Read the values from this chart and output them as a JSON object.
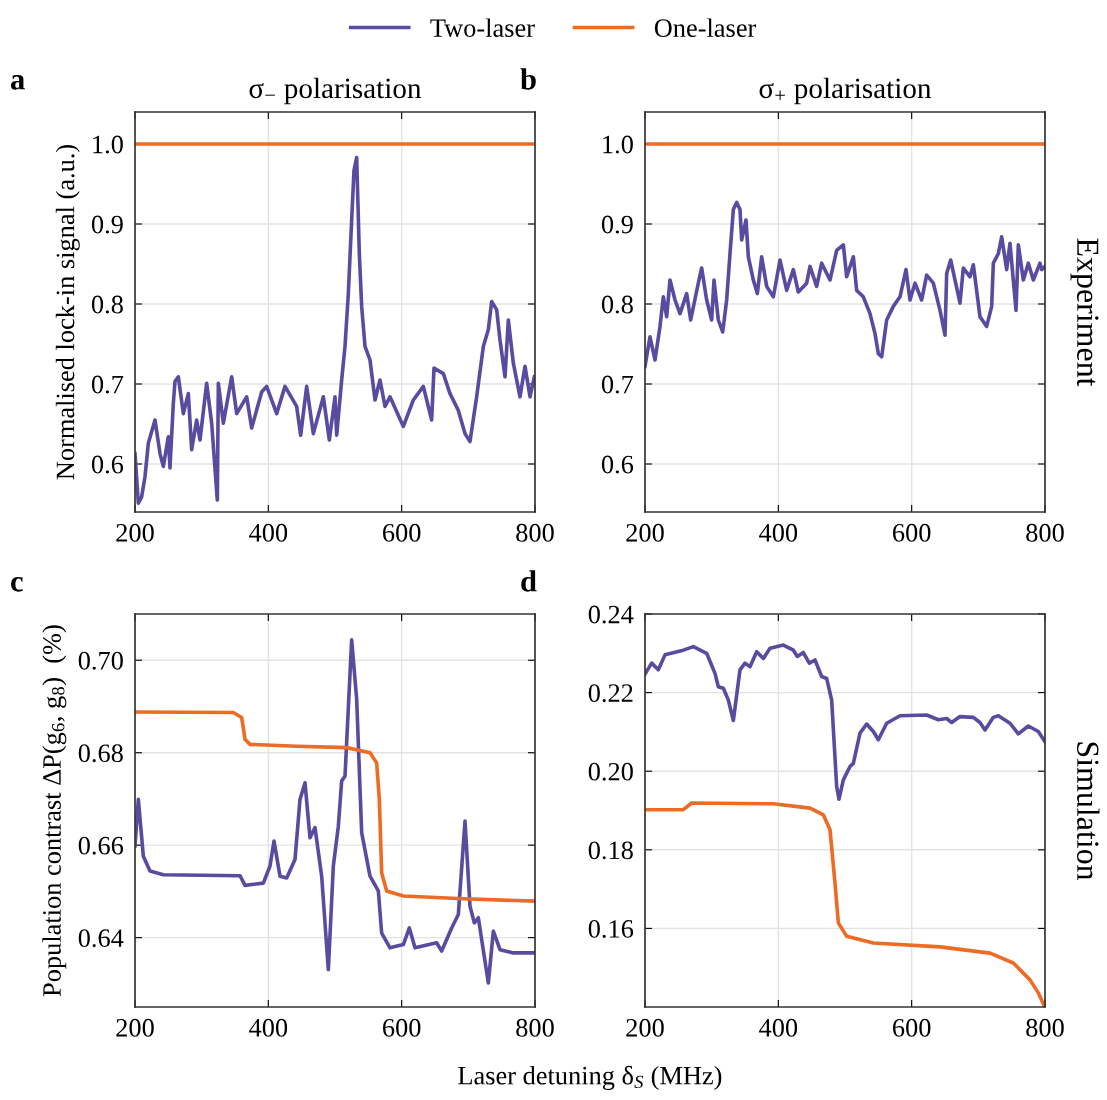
{
  "chart_data": [
    {
      "type": "line",
      "title": "σ$_{−}$ polarisation",
      "ylabel": "Normalised lock-in signal (a.u.)",
      "annotations": [
        "a"
      ],
      "xlim": [
        200,
        800
      ],
      "xticks": [
        200,
        400,
        600,
        800
      ],
      "ylim": [
        0.54,
        1.04
      ],
      "yticks": [
        0.6,
        0.7,
        0.8,
        0.9,
        {
          "value": 1,
          "label": "1.0"
        }
      ],
      "grid": true,
      "legend": "top",
      "series": [
        {
          "name": "Two-laser",
          "color": "#5a4ba0",
          "x": [
            200,
            205,
            210,
            215,
            220,
            230,
            237.5,
            242.5,
            250,
            252.5,
            257.5,
            260,
            265,
            272.5,
            280,
            285,
            292.5,
            297.5,
            307.5,
            315,
            323.5,
            325,
            332.5,
            345,
            352.5,
            367.5,
            375,
            390,
            397.5,
            412.5,
            425,
            442.5,
            448.5,
            457.5,
            467.5,
            482.5,
            491.5,
            500,
            502.5,
            510,
            515,
            520,
            525,
            528.5,
            532.5,
            536.5,
            540,
            545,
            552.5,
            560,
            567.5,
            575,
            582.5,
            602.5,
            617.5,
            632.5,
            645,
            648.5,
            662.5,
            672.5,
            685,
            695,
            702.5,
            712.5,
            722.5,
            730,
            735,
            742.5,
            747.5,
            755,
            760,
            767.5,
            777.5,
            785,
            792.5,
            799
          ],
          "values": [
            0.613,
            0.551,
            0.559,
            0.584,
            0.626,
            0.655,
            0.613,
            0.597,
            0.634,
            0.595,
            0.676,
            0.703,
            0.709,
            0.663,
            0.688,
            0.618,
            0.655,
            0.63,
            0.701,
            0.651,
            0.555,
            0.701,
            0.651,
            0.709,
            0.663,
            0.684,
            0.645,
            0.69,
            0.697,
            0.663,
            0.697,
            0.672,
            0.636,
            0.697,
            0.638,
            0.684,
            0.63,
            0.684,
            0.636,
            0.705,
            0.747,
            0.813,
            0.905,
            0.967,
            0.983,
            0.863,
            0.797,
            0.747,
            0.73,
            0.68,
            0.705,
            0.672,
            0.684,
            0.647,
            0.68,
            0.697,
            0.655,
            0.72,
            0.713,
            0.688,
            0.667,
            0.638,
            0.628,
            0.684,
            0.747,
            0.768,
            0.803,
            0.793,
            0.755,
            0.709,
            0.78,
            0.726,
            0.684,
            0.722,
            0.684,
            0.709
          ]
        },
        {
          "name": "One-laser",
          "color": "#ee6b23",
          "x": [
            200,
            800
          ],
          "values": [
            1.0,
            1.0
          ]
        }
      ]
    },
    {
      "type": "line",
      "title": "σ$_{+}$ polarisation",
      "annotations": [
        "b",
        "Experiment"
      ],
      "xlim": [
        200,
        800
      ],
      "xticks": [
        200,
        400,
        600,
        800
      ],
      "ylim": [
        0.54,
        1.04
      ],
      "yticks": [
        0.6,
        0.7,
        0.8,
        0.9,
        {
          "value": 1,
          "label": "1.0"
        }
      ],
      "grid": true,
      "series": [
        {
          "color": "#5a4ba0",
          "x": [
            200,
            207.5,
            215,
            222.5,
            227.5,
            232.5,
            237.5,
            245,
            252.5,
            262.5,
            268.5,
            280,
            285,
            292.5,
            300,
            303.5,
            310,
            316.5,
            322.5,
            327.5,
            332.5,
            337.5,
            342.5,
            345,
            351.5,
            355,
            362.5,
            368.5,
            375,
            382.5,
            392.5,
            402.5,
            412.5,
            422.5,
            430,
            442.5,
            447.5,
            457.5,
            465,
            477.5,
            487.5,
            497.5,
            502.5,
            512.5,
            517.5,
            527.5,
            537.5,
            545,
            550,
            555,
            562.5,
            572.5,
            582.5,
            591.5,
            597.5,
            605,
            615,
            622.5,
            632.5,
            642.5,
            650,
            652.5,
            658.5,
            672.5,
            677.5,
            687.5,
            692.5,
            702.5,
            712.5,
            720,
            722.5,
            730,
            735,
            742.5,
            747.5,
            756.5,
            760,
            767.5,
            775,
            782.5,
            792.5,
            795,
            800
          ],
          "values": [
            0.722,
            0.759,
            0.73,
            0.772,
            0.809,
            0.784,
            0.83,
            0.805,
            0.788,
            0.813,
            0.78,
            0.826,
            0.845,
            0.805,
            0.78,
            0.83,
            0.78,
            0.765,
            0.805,
            0.863,
            0.918,
            0.927,
            0.918,
            0.88,
            0.905,
            0.859,
            0.83,
            0.813,
            0.859,
            0.822,
            0.809,
            0.855,
            0.817,
            0.843,
            0.815,
            0.826,
            0.847,
            0.822,
            0.851,
            0.83,
            0.867,
            0.874,
            0.834,
            0.859,
            0.817,
            0.809,
            0.788,
            0.763,
            0.738,
            0.734,
            0.78,
            0.797,
            0.809,
            0.843,
            0.805,
            0.826,
            0.805,
            0.836,
            0.826,
            0.792,
            0.761,
            0.838,
            0.855,
            0.801,
            0.845,
            0.834,
            0.849,
            0.784,
            0.772,
            0.797,
            0.851,
            0.863,
            0.884,
            0.843,
            0.876,
            0.792,
            0.874,
            0.83,
            0.851,
            0.83,
            0.851,
            0.843,
            0.847
          ]
        },
        {
          "color": "#ee6b23",
          "x": [
            200,
            800
          ],
          "values": [
            1.0,
            1.0
          ]
        }
      ]
    },
    {
      "type": "line",
      "ylabel": "Population contrast ΔP(g$_{6}$, g$_{8}$)  (%)",
      "xlabel": "Laser detuning δ$_{S}$ (MHz)",
      "annotations": [
        "c"
      ],
      "xlim": [
        200,
        800
      ],
      "xticks": [
        200,
        400,
        600,
        800
      ],
      "ylim": [
        0.625,
        0.71
      ],
      "yticks": [
        0.64,
        0.66,
        0.68,
        {
          "value": 0.7,
          "label": "0.70"
        }
      ],
      "grid": true,
      "series": [
        {
          "color": "#5a4ba0",
          "x": [
            200,
            205,
            212.5,
            222.5,
            242.5,
            357.5,
            365,
            392.5,
            402.5,
            408.5,
            417.5,
            427.5,
            440,
            447.5,
            455,
            462.5,
            470,
            480,
            490,
            497.5,
            505,
            510,
            515,
            525,
            532.5,
            540,
            552.5,
            565,
            570,
            582.5,
            602.5,
            611.5,
            620,
            652.5,
            660,
            675,
            685,
            695,
            702.5,
            709,
            715,
            730,
            737.5,
            747.5,
            767.5,
            799
          ],
          "values": [
            0.6598,
            0.6699,
            0.6576,
            0.6544,
            0.6536,
            0.6534,
            0.6513,
            0.6518,
            0.6555,
            0.6609,
            0.6533,
            0.6529,
            0.6569,
            0.6699,
            0.6735,
            0.6616,
            0.6638,
            0.6533,
            0.6331,
            0.6555,
            0.6641,
            0.6739,
            0.6749,
            0.7044,
            0.6916,
            0.6627,
            0.6533,
            0.6501,
            0.641,
            0.6378,
            0.6385,
            0.6421,
            0.6378,
            0.6389,
            0.6371,
            0.6421,
            0.645,
            0.6652,
            0.6468,
            0.6432,
            0.6443,
            0.6302,
            0.6414,
            0.6374,
            0.6367,
            0.6367
          ]
        },
        {
          "color": "#ee6b23",
          "x": [
            200,
            347.5,
            360,
            365,
            372.5,
            442.5,
            517.5,
            552.5,
            562.5,
            566.5,
            570,
            577.5,
            602.5,
            692.5,
            799
          ],
          "values": [
            0.6888,
            0.6887,
            0.6876,
            0.6829,
            0.6818,
            0.6814,
            0.6811,
            0.68,
            0.6778,
            0.6699,
            0.654,
            0.6501,
            0.649,
            0.6484,
            0.6479
          ]
        }
      ]
    },
    {
      "type": "line",
      "annotations": [
        "d",
        "Simulation"
      ],
      "xlim": [
        200,
        800
      ],
      "xticks": [
        200,
        400,
        600,
        800
      ],
      "ylim": [
        0.14,
        0.24
      ],
      "yticks": [
        0.16,
        0.18,
        {
          "value": 0.2,
          "label": "0.20"
        },
        0.22,
        0.24
      ],
      "grid": true,
      "series": [
        {
          "color": "#5a4ba0",
          "x": [
            200,
            210,
            220,
            230,
            257.5,
            272.5,
            292.5,
            305,
            310,
            317.5,
            325,
            332.5,
            342.5,
            350,
            357.5,
            367.5,
            377.5,
            387.5,
            407.5,
            422.5,
            428.5,
            437.5,
            446.5,
            455,
            465,
            472.5,
            480,
            487.5,
            491,
            497.5,
            507.5,
            512.5,
            522.5,
            532.5,
            542.5,
            550,
            562.5,
            582.5,
            622.5,
            640,
            652.5,
            660,
            672.5,
            692.5,
            702.5,
            710,
            722.5,
            730,
            747.5,
            760,
            775,
            790,
            800
          ],
          "values": [
            0.2247,
            0.2275,
            0.2258,
            0.2296,
            0.2308,
            0.2317,
            0.23,
            0.2249,
            0.2215,
            0.2211,
            0.2181,
            0.2129,
            0.2258,
            0.2275,
            0.2266,
            0.2304,
            0.2287,
            0.2313,
            0.2321,
            0.2308,
            0.2292,
            0.2302,
            0.2275,
            0.2283,
            0.2241,
            0.2236,
            0.2181,
            0.1961,
            0.1929,
            0.1978,
            0.2012,
            0.202,
            0.2097,
            0.212,
            0.2101,
            0.208,
            0.2122,
            0.2141,
            0.2143,
            0.2131,
            0.2134,
            0.2124,
            0.2139,
            0.2137,
            0.2124,
            0.2105,
            0.2137,
            0.2141,
            0.2122,
            0.2095,
            0.2115,
            0.2101,
            0.2075
          ]
        },
        {
          "color": "#ee6b23",
          "x": [
            200,
            257.5,
            270,
            392.5,
            447.5,
            467.5,
            477.5,
            485,
            490,
            502.5,
            542.5,
            642.5,
            717.5,
            752.5,
            777.5,
            790,
            799
          ],
          "values": [
            0.1902,
            0.1902,
            0.1919,
            0.1917,
            0.1906,
            0.1889,
            0.1851,
            0.1715,
            0.1614,
            0.158,
            0.1563,
            0.1553,
            0.1537,
            0.1512,
            0.1469,
            0.1436,
            0.1402
          ]
        }
      ]
    }
  ]
}
